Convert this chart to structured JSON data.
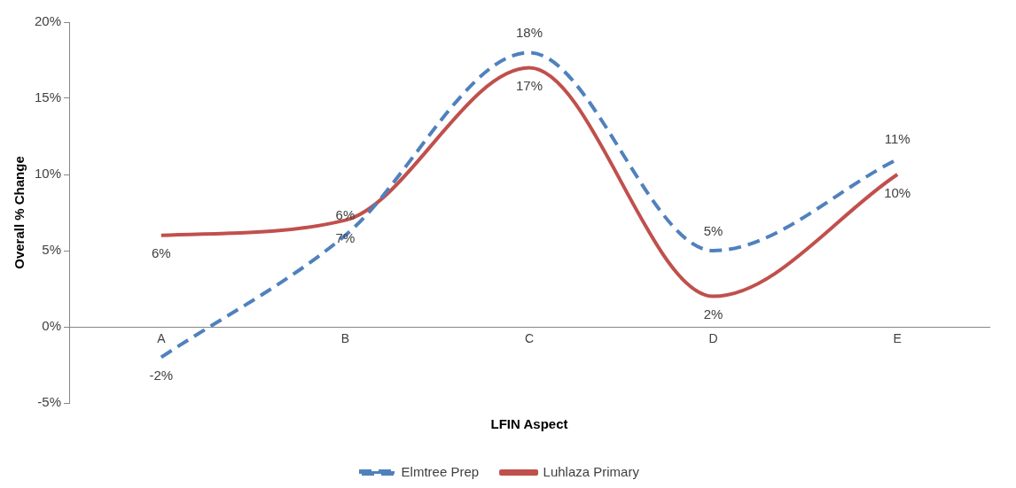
{
  "chart_data": {
    "type": "line",
    "xlabel": "LFIN Aspect",
    "ylabel": "Overall % Change",
    "categories": [
      "A",
      "B",
      "C",
      "D",
      "E"
    ],
    "series": [
      {
        "name": "Elmtree Prep",
        "color": "#4f81bd",
        "line_style": "dashed",
        "values": [
          -2,
          6,
          18,
          5,
          11
        ],
        "value_labels": [
          "-2%",
          "6%",
          "18%",
          "5%",
          "11%"
        ]
      },
      {
        "name": "Luhlaza Primary",
        "color": "#c0504d",
        "line_style": "solid",
        "values": [
          6,
          7,
          17,
          2,
          10
        ],
        "value_labels": [
          "6%",
          "7%",
          "17%",
          "2%",
          "10%"
        ]
      }
    ],
    "ylim": [
      -5,
      20
    ],
    "yticks": [
      {
        "value": -5,
        "label": "-5%"
      },
      {
        "value": 0,
        "label": "0%"
      },
      {
        "value": 5,
        "label": "5%"
      },
      {
        "value": 10,
        "label": "10%"
      },
      {
        "value": 15,
        "label": "15%"
      },
      {
        "value": 20,
        "label": "20%"
      }
    ],
    "grid": false,
    "legend": "bottom",
    "marker": "none"
  }
}
